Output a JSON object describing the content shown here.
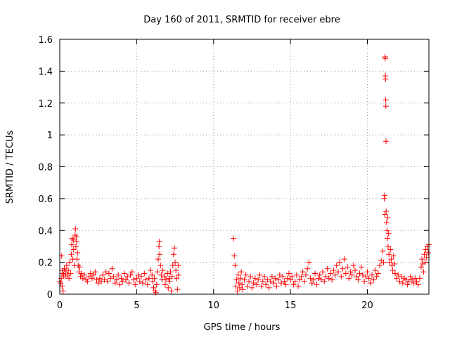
{
  "chart_data": {
    "type": "scatter",
    "title": "Day 160 of 2011, SRMTID for receiver ebre",
    "xlabel": "GPS time / hours",
    "ylabel": "SRMTID / TECUs",
    "xlim": [
      0,
      24
    ],
    "ylim": [
      0,
      1.6
    ],
    "grid": true,
    "marker": "+",
    "color": "#ff0000",
    "x_ticks": [
      0,
      5,
      10,
      15,
      20
    ],
    "x_tick_labels": [
      "0",
      "5",
      "10",
      "15",
      "20"
    ],
    "y_ticks": [
      0,
      0.2,
      0.4,
      0.6,
      0.8,
      1.0,
      1.2,
      1.4,
      1.6
    ],
    "y_tick_labels": [
      "0",
      "0.2",
      "0.4",
      "0.6",
      "0.8",
      "1",
      "1.2",
      "1.4",
      "1.6"
    ],
    "series": [
      {
        "name": "SRMTID",
        "points": [
          [
            0.0,
            0.08
          ],
          [
            0.05,
            0.07
          ],
          [
            0.1,
            0.1
          ],
          [
            0.12,
            0.24
          ],
          [
            0.15,
            0.05
          ],
          [
            0.18,
            0.13
          ],
          [
            0.2,
            0.15
          ],
          [
            0.22,
            0.02
          ],
          [
            0.25,
            0.12
          ],
          [
            0.3,
            0.16
          ],
          [
            0.35,
            0.11
          ],
          [
            0.4,
            0.14
          ],
          [
            0.45,
            0.18
          ],
          [
            0.5,
            0.12
          ],
          [
            0.55,
            0.15
          ],
          [
            0.6,
            0.1
          ],
          [
            0.65,
            0.2
          ],
          [
            0.7,
            0.13
          ],
          [
            0.75,
            0.25
          ],
          [
            0.78,
            0.31
          ],
          [
            0.8,
            0.35
          ],
          [
            0.85,
            0.22
          ],
          [
            0.88,
            0.34
          ],
          [
            0.9,
            0.28
          ],
          [
            0.95,
            0.18
          ],
          [
            1.0,
            0.37
          ],
          [
            1.02,
            0.41
          ],
          [
            1.05,
            0.3
          ],
          [
            1.08,
            0.36
          ],
          [
            1.1,
            0.33
          ],
          [
            1.12,
            0.22
          ],
          [
            1.15,
            0.26
          ],
          [
            1.2,
            0.18
          ],
          [
            1.25,
            0.14
          ],
          [
            1.3,
            0.17
          ],
          [
            1.35,
            0.11
          ],
          [
            1.4,
            0.13
          ],
          [
            1.5,
            0.1
          ],
          [
            1.6,
            0.12
          ],
          [
            1.7,
            0.09
          ],
          [
            1.8,
            0.08
          ],
          [
            1.9,
            0.11
          ],
          [
            2.0,
            0.13
          ],
          [
            2.1,
            0.1
          ],
          [
            2.2,
            0.12
          ],
          [
            2.3,
            0.14
          ],
          [
            2.4,
            0.09
          ],
          [
            2.5,
            0.07
          ],
          [
            2.6,
            0.1
          ],
          [
            2.7,
            0.08
          ],
          [
            2.8,
            0.12
          ],
          [
            2.9,
            0.09
          ],
          [
            3.0,
            0.14
          ],
          [
            3.1,
            0.08
          ],
          [
            3.2,
            0.13
          ],
          [
            3.3,
            0.1
          ],
          [
            3.4,
            0.16
          ],
          [
            3.5,
            0.11
          ],
          [
            3.6,
            0.07
          ],
          [
            3.7,
            0.09
          ],
          [
            3.8,
            0.12
          ],
          [
            3.9,
            0.06
          ],
          [
            4.0,
            0.1
          ],
          [
            4.1,
            0.08
          ],
          [
            4.2,
            0.13
          ],
          [
            4.3,
            0.09
          ],
          [
            4.4,
            0.11
          ],
          [
            4.5,
            0.07
          ],
          [
            4.6,
            0.12
          ],
          [
            4.7,
            0.14
          ],
          [
            4.8,
            0.09
          ],
          [
            4.9,
            0.06
          ],
          [
            5.0,
            0.1
          ],
          [
            5.1,
            0.12
          ],
          [
            5.2,
            0.08
          ],
          [
            5.3,
            0.11
          ],
          [
            5.4,
            0.07
          ],
          [
            5.5,
            0.13
          ],
          [
            5.6,
            0.09
          ],
          [
            5.7,
            0.06
          ],
          [
            5.8,
            0.1
          ],
          [
            5.9,
            0.15
          ],
          [
            6.0,
            0.12
          ],
          [
            6.05,
            0.08
          ],
          [
            6.1,
            0.04
          ],
          [
            6.15,
            0.1
          ],
          [
            6.2,
            0.02
          ],
          [
            6.25,
            0.01
          ],
          [
            6.3,
            0.06
          ],
          [
            6.35,
            0.14
          ],
          [
            6.4,
            0.22
          ],
          [
            6.45,
            0.3
          ],
          [
            6.48,
            0.33
          ],
          [
            6.5,
            0.25
          ],
          [
            6.55,
            0.18
          ],
          [
            6.6,
            0.12
          ],
          [
            6.65,
            0.09
          ],
          [
            6.7,
            0.15
          ],
          [
            6.8,
            0.11
          ],
          [
            6.85,
            0.06
          ],
          [
            6.9,
            0.09
          ],
          [
            7.0,
            0.13
          ],
          [
            7.05,
            0.04
          ],
          [
            7.1,
            0.1
          ],
          [
            7.15,
            0.08
          ],
          [
            7.2,
            0.14
          ],
          [
            7.25,
            0.02
          ],
          [
            7.3,
            0.11
          ],
          [
            7.35,
            0.18
          ],
          [
            7.4,
            0.25
          ],
          [
            7.45,
            0.29
          ],
          [
            7.5,
            0.2
          ],
          [
            7.55,
            0.15
          ],
          [
            7.6,
            0.1
          ],
          [
            7.65,
            0.03
          ],
          [
            7.7,
            0.18
          ],
          [
            7.72,
            0.12
          ],
          [
            11.3,
            0.35
          ],
          [
            11.35,
            0.24
          ],
          [
            11.4,
            0.18
          ],
          [
            11.45,
            0.05
          ],
          [
            11.5,
            0.09
          ],
          [
            11.55,
            0.02
          ],
          [
            11.6,
            0.12
          ],
          [
            11.65,
            0.07
          ],
          [
            11.7,
            0.04
          ],
          [
            11.75,
            0.1
          ],
          [
            11.8,
            0.14
          ],
          [
            11.85,
            0.06
          ],
          [
            11.9,
            0.03
          ],
          [
            12.0,
            0.09
          ],
          [
            12.1,
            0.12
          ],
          [
            12.2,
            0.05
          ],
          [
            12.3,
            0.08
          ],
          [
            12.4,
            0.11
          ],
          [
            12.5,
            0.04
          ],
          [
            12.6,
            0.07
          ],
          [
            12.7,
            0.1
          ],
          [
            12.8,
            0.06
          ],
          [
            12.9,
            0.09
          ],
          [
            13.0,
            0.12
          ],
          [
            13.1,
            0.05
          ],
          [
            13.2,
            0.08
          ],
          [
            13.3,
            0.11
          ],
          [
            13.4,
            0.06
          ],
          [
            13.5,
            0.09
          ],
          [
            13.6,
            0.04
          ],
          [
            13.7,
            0.08
          ],
          [
            13.8,
            0.11
          ],
          [
            13.9,
            0.07
          ],
          [
            14.0,
            0.1
          ],
          [
            14.1,
            0.05
          ],
          [
            14.2,
            0.09
          ],
          [
            14.3,
            0.12
          ],
          [
            14.4,
            0.07
          ],
          [
            14.5,
            0.11
          ],
          [
            14.6,
            0.08
          ],
          [
            14.7,
            0.06
          ],
          [
            14.8,
            0.1
          ],
          [
            14.9,
            0.13
          ],
          [
            15.0,
            0.09
          ],
          [
            15.1,
            0.11
          ],
          [
            15.2,
            0.06
          ],
          [
            15.3,
            0.08
          ],
          [
            15.4,
            0.12
          ],
          [
            15.5,
            0.05
          ],
          [
            15.6,
            0.09
          ],
          [
            15.7,
            0.11
          ],
          [
            15.8,
            0.14
          ],
          [
            15.9,
            0.08
          ],
          [
            16.0,
            0.12
          ],
          [
            16.1,
            0.16
          ],
          [
            16.2,
            0.2
          ],
          [
            16.3,
            0.1
          ],
          [
            16.4,
            0.07
          ],
          [
            16.5,
            0.09
          ],
          [
            16.6,
            0.13
          ],
          [
            16.7,
            0.06
          ],
          [
            16.8,
            0.1
          ],
          [
            16.9,
            0.12
          ],
          [
            17.0,
            0.09
          ],
          [
            17.1,
            0.14
          ],
          [
            17.2,
            0.08
          ],
          [
            17.3,
            0.11
          ],
          [
            17.4,
            0.16
          ],
          [
            17.5,
            0.1
          ],
          [
            17.6,
            0.13
          ],
          [
            17.7,
            0.09
          ],
          [
            17.8,
            0.15
          ],
          [
            17.9,
            0.12
          ],
          [
            18.0,
            0.18
          ],
          [
            18.1,
            0.14
          ],
          [
            18.2,
            0.2
          ],
          [
            18.3,
            0.11
          ],
          [
            18.4,
            0.16
          ],
          [
            18.5,
            0.22
          ],
          [
            18.6,
            0.13
          ],
          [
            18.7,
            0.17
          ],
          [
            18.8,
            0.1
          ],
          [
            18.9,
            0.14
          ],
          [
            19.0,
            0.12
          ],
          [
            19.1,
            0.18
          ],
          [
            19.2,
            0.15
          ],
          [
            19.3,
            0.11
          ],
          [
            19.4,
            0.09
          ],
          [
            19.5,
            0.13
          ],
          [
            19.6,
            0.17
          ],
          [
            19.7,
            0.12
          ],
          [
            19.8,
            0.08
          ],
          [
            19.9,
            0.11
          ],
          [
            20.0,
            0.14
          ],
          [
            20.1,
            0.1
          ],
          [
            20.2,
            0.07
          ],
          [
            20.3,
            0.12
          ],
          [
            20.4,
            0.09
          ],
          [
            20.5,
            0.15
          ],
          [
            20.6,
            0.11
          ],
          [
            20.7,
            0.13
          ],
          [
            20.8,
            0.18
          ],
          [
            20.9,
            0.21
          ],
          [
            21.0,
            0.27
          ],
          [
            21.05,
            0.2
          ],
          [
            21.1,
            0.6
          ],
          [
            21.12,
            0.62
          ],
          [
            21.14,
            0.5
          ],
          [
            21.15,
            1.49
          ],
          [
            21.16,
            1.48
          ],
          [
            21.17,
            1.37
          ],
          [
            21.18,
            1.35
          ],
          [
            21.19,
            1.22
          ],
          [
            21.2,
            1.18
          ],
          [
            21.21,
            0.96
          ],
          [
            21.22,
            0.52
          ],
          [
            21.25,
            0.45
          ],
          [
            21.28,
            0.4
          ],
          [
            21.3,
            0.35
          ],
          [
            21.32,
            0.48
          ],
          [
            21.35,
            0.3
          ],
          [
            21.38,
            0.38
          ],
          [
            21.4,
            0.25
          ],
          [
            21.45,
            0.2
          ],
          [
            21.5,
            0.28
          ],
          [
            21.55,
            0.22
          ],
          [
            21.6,
            0.18
          ],
          [
            21.65,
            0.15
          ],
          [
            21.7,
            0.24
          ],
          [
            21.75,
            0.19
          ],
          [
            21.8,
            0.13
          ],
          [
            21.9,
            0.1
          ],
          [
            22.0,
            0.12
          ],
          [
            22.1,
            0.08
          ],
          [
            22.2,
            0.11
          ],
          [
            22.3,
            0.07
          ],
          [
            22.4,
            0.1
          ],
          [
            22.5,
            0.09
          ],
          [
            22.6,
            0.06
          ],
          [
            22.7,
            0.08
          ],
          [
            22.8,
            0.11
          ],
          [
            22.9,
            0.09
          ],
          [
            23.0,
            0.07
          ],
          [
            23.1,
            0.1
          ],
          [
            23.2,
            0.08
          ],
          [
            23.3,
            0.06
          ],
          [
            23.4,
            0.1
          ],
          [
            23.5,
            0.17
          ],
          [
            23.55,
            0.22
          ],
          [
            23.6,
            0.19
          ],
          [
            23.65,
            0.14
          ],
          [
            23.7,
            0.25
          ],
          [
            23.75,
            0.2
          ],
          [
            23.8,
            0.28
          ],
          [
            23.85,
            0.23
          ],
          [
            23.9,
            0.3
          ],
          [
            23.95,
            0.26
          ],
          [
            24.0,
            0.31
          ]
        ]
      }
    ]
  }
}
